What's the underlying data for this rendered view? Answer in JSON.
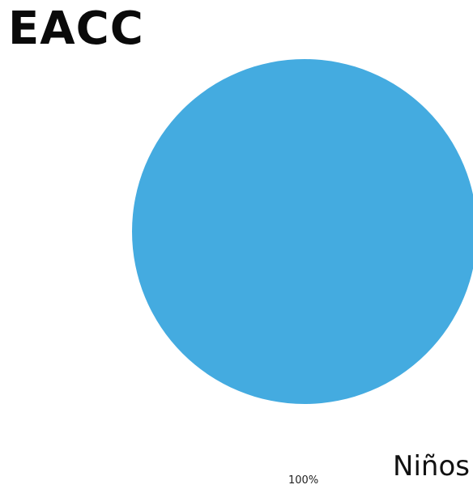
{
  "chart_data": {
    "type": "pie",
    "title": "EACC",
    "categories": [
      "Niños"
    ],
    "values": [
      100
    ],
    "data_labels": [
      "100%"
    ],
    "colors": [
      "#44ABE0"
    ],
    "legend": "bottom-right"
  }
}
